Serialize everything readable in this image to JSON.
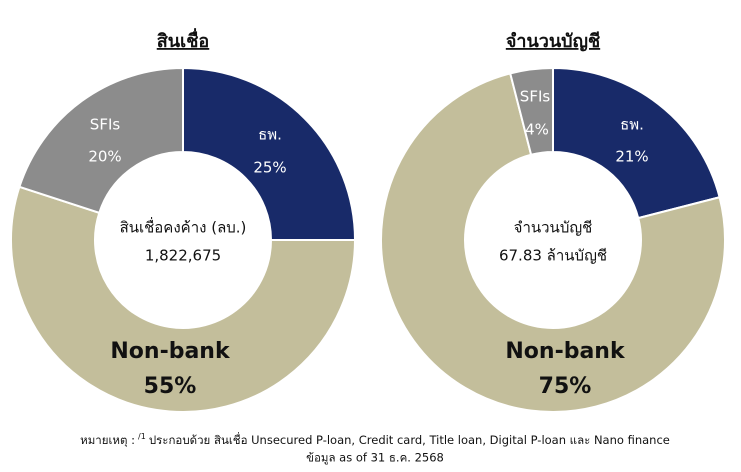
{
  "chart_data": [
    {
      "type": "donut",
      "title": "สินเชื่อ",
      "center_label": "สินเชื่อคงค้าง (ลบ.)",
      "center_value": "1,822,675",
      "categories": [
        "ธพ.",
        "Non-bank",
        "SFIs"
      ],
      "values": [
        25,
        55,
        20
      ],
      "value_labels": [
        "25%",
        "55%",
        "20%"
      ],
      "colors": [
        "#182a69",
        "#c3be9b",
        "#8c8c8c"
      ]
    },
    {
      "type": "donut",
      "title": "จำนวนบัญชี",
      "center_label": "จำนวนบัญชี",
      "center_value": "67.83 ล้านบัญชี",
      "categories": [
        "ธพ.",
        "Non-bank",
        "SFIs"
      ],
      "values": [
        21,
        75,
        4
      ],
      "value_labels": [
        "21%",
        "75%",
        "4%"
      ],
      "colors": [
        "#182a69",
        "#c3be9b",
        "#8c8c8c"
      ]
    }
  ],
  "footnote": {
    "note_label": "หมายเหตุ :",
    "note_marker": "/1",
    "note_text": "ประกอบด้วย สินเชื่อ Unsecured P-loan, Credit card, Title loan, Digital P-loan และ Nano finance",
    "source": "ข้อมูล as of 31 ธ.ค. 2568"
  }
}
